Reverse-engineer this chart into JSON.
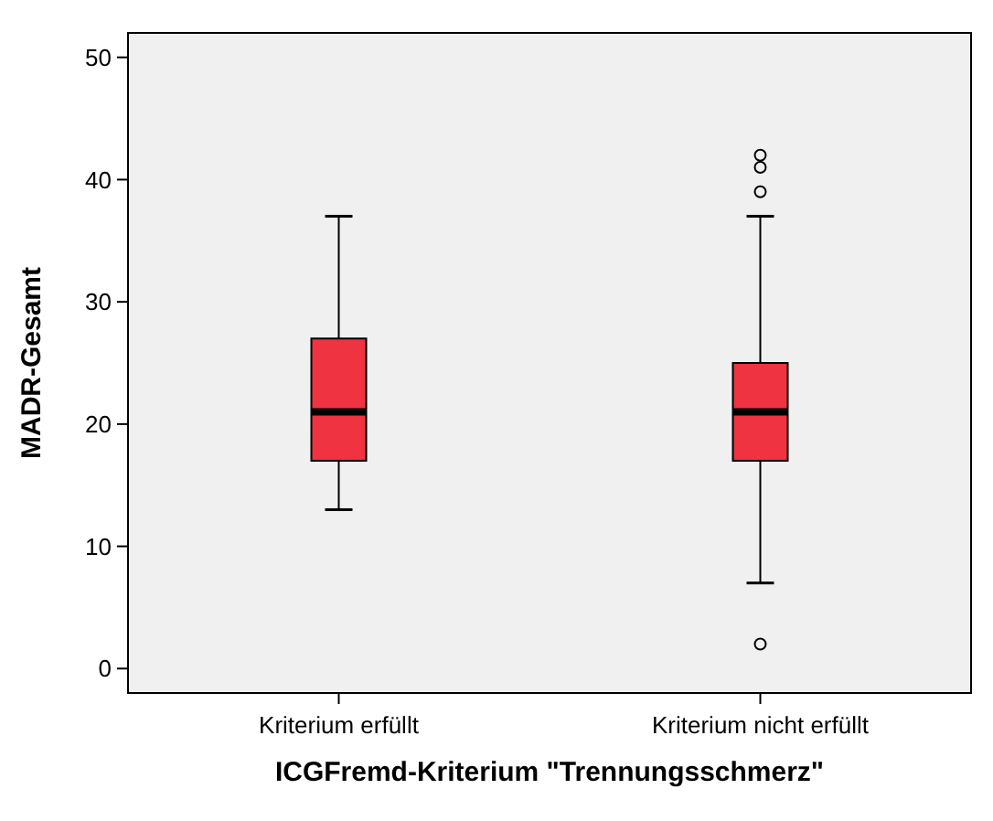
{
  "chart_data": {
    "type": "box",
    "xlabel": "ICGFremd-Kriterium \"Trennungsschmerz\"",
    "ylabel": "MADR-Gesamt",
    "categories": [
      "Kriterium erfüllt",
      "Kriterium nicht erfüllt"
    ],
    "boxes": [
      {
        "low": 13,
        "q1": 17,
        "median": 21,
        "q3": 27,
        "high": 37
      },
      {
        "low": 7,
        "q1": 17,
        "median": 21,
        "q3": 25,
        "high": 37,
        "outliers": [
          2,
          39,
          41,
          42
        ]
      }
    ],
    "color": "#ef3340",
    "ylim": [
      -2,
      52
    ],
    "yticks": [
      0,
      10,
      20,
      30,
      40,
      50
    ],
    "grid": false
  }
}
